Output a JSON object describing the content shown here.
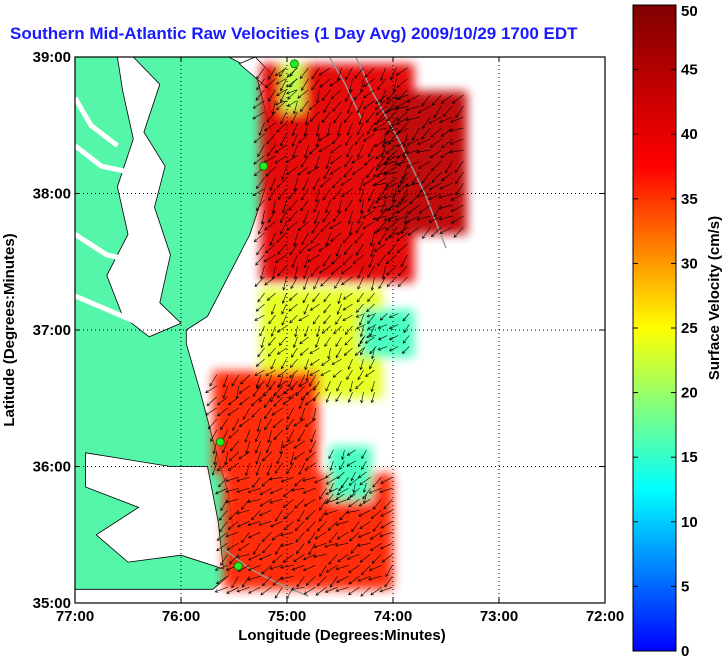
{
  "chart_data": {
    "type": "heatmap",
    "title": "Southern Mid-Atlantic Raw Velocities (1 Day Avg) 2009/10/29 1700 EDT",
    "xlabel": "Longitude (Degrees:Minutes)",
    "ylabel": "Latitude (Degrees:Minutes)",
    "x_ticks": [
      "77:00",
      "76:00",
      "75:00",
      "74:00",
      "73:00",
      "72:00"
    ],
    "y_ticks": [
      "39:00",
      "38:00",
      "37:00",
      "36:00",
      "35:00"
    ],
    "x_tick_values": [
      -77,
      -76,
      -75,
      -74,
      -73,
      -72
    ],
    "y_tick_values": [
      39,
      38,
      37,
      36,
      35
    ],
    "xlim": [
      -77,
      -72
    ],
    "ylim": [
      35,
      39
    ],
    "grid": true,
    "colorbar": {
      "label": "Surface Velocity (cm/s)",
      "min": 0,
      "max": 50,
      "ticks": [
        "0",
        "5",
        "10",
        "15",
        "20",
        "25",
        "30",
        "35",
        "40",
        "45",
        "50"
      ],
      "tick_values": [
        0,
        5,
        10,
        15,
        20,
        25,
        30,
        35,
        40,
        45,
        50
      ],
      "colormap": "jet",
      "placement": "right"
    },
    "colors": {
      "land": "#55f5aa",
      "water": "#ffffff",
      "title": "#1a1aff",
      "arrows": "#000000",
      "isobath": "#999999",
      "stations": "#22ee22"
    },
    "stations": [
      {
        "lon": -74.93,
        "lat": 38.95
      },
      {
        "lon": -75.22,
        "lat": 38.2
      },
      {
        "lon": -75.63,
        "lat": 36.18
      },
      {
        "lon": -75.46,
        "lat": 35.27
      }
    ],
    "field_regions": [
      {
        "lon_range": [
          -75.25,
          -73.8
        ],
        "lat_range": [
          37.35,
          38.95
        ],
        "speed_cm_s": 45
      },
      {
        "lon_range": [
          -74.1,
          -73.3
        ],
        "lat_range": [
          37.7,
          38.75
        ],
        "speed_cm_s": 47
      },
      {
        "lon_range": [
          -75.25,
          -74.1
        ],
        "lat_range": [
          36.5,
          37.3
        ],
        "speed_cm_s": 30
      },
      {
        "lon_range": [
          -74.3,
          -73.8
        ],
        "lat_range": [
          36.8,
          37.15
        ],
        "speed_cm_s": 22
      },
      {
        "lon_range": [
          -75.7,
          -74.7
        ],
        "lat_range": [
          35.95,
          36.7
        ],
        "speed_cm_s": 42
      },
      {
        "lon_range": [
          -75.6,
          -74.0
        ],
        "lat_range": [
          35.1,
          35.95
        ],
        "speed_cm_s": 42
      },
      {
        "lon_range": [
          -74.6,
          -74.2
        ],
        "lat_range": [
          35.75,
          36.15
        ],
        "speed_cm_s": 22
      },
      {
        "lon_range": [
          -75.05,
          -74.85
        ],
        "lat_range": [
          38.6,
          38.95
        ],
        "speed_cm_s": 28
      }
    ]
  }
}
